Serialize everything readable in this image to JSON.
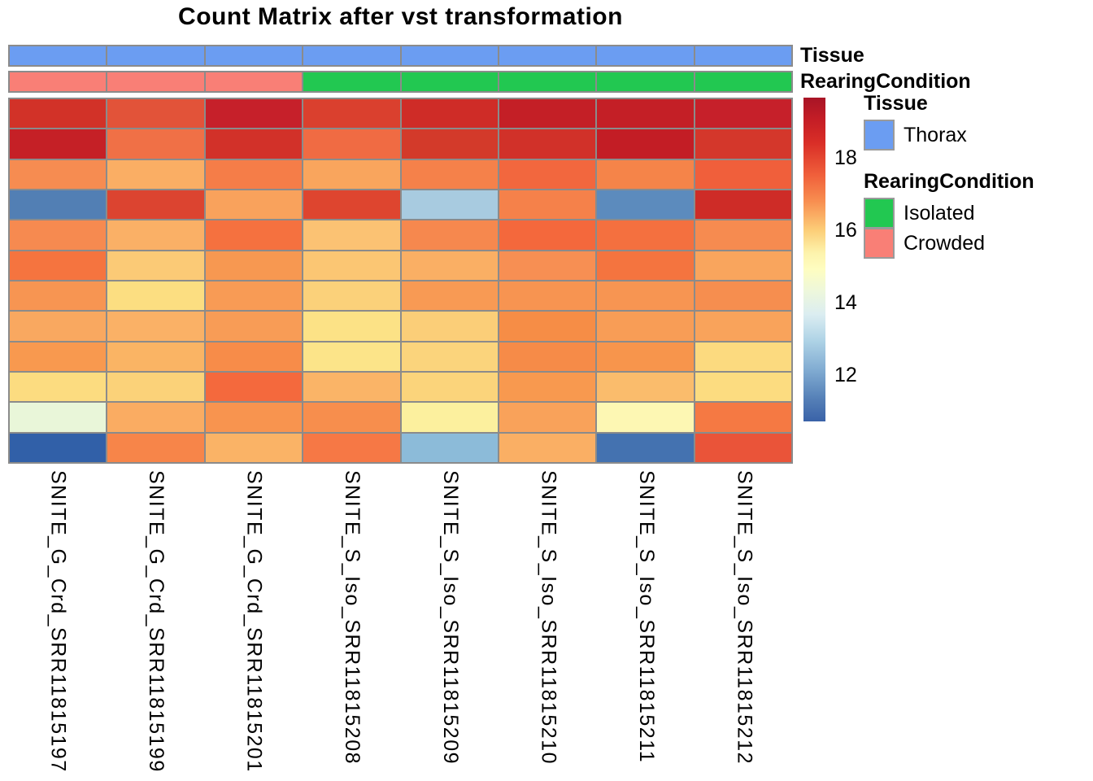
{
  "title": "Count Matrix after vst transformation",
  "annotations": {
    "tissue": {
      "label": "Tissue",
      "values": [
        "Thorax",
        "Thorax",
        "Thorax",
        "Thorax",
        "Thorax",
        "Thorax",
        "Thorax",
        "Thorax"
      ],
      "colors": {
        "Thorax": "#6B9DF2"
      }
    },
    "rearing": {
      "label": "RearingCondition",
      "values": [
        "Crowded",
        "Crowded",
        "Crowded",
        "Isolated",
        "Isolated",
        "Isolated",
        "Isolated",
        "Isolated"
      ],
      "colors": {
        "Isolated": "#22C851",
        "Crowded": "#F97F76"
      }
    }
  },
  "legend": {
    "tissue_header": "Tissue",
    "tissue_items": [
      {
        "label": "Thorax",
        "color": "#6B9DF2"
      }
    ],
    "rearing_header": "RearingCondition",
    "rearing_items": [
      {
        "label": "Isolated",
        "color": "#22C851"
      },
      {
        "label": "Crowded",
        "color": "#F97F76"
      }
    ]
  },
  "colorbar": {
    "ticks": [
      18,
      16,
      14,
      12
    ],
    "value_range": [
      10.73,
      19.65
    ],
    "gradient_stops": [
      [
        "#A81426",
        0
      ],
      [
        "#C51E26",
        7
      ],
      [
        "#D92E27",
        14
      ],
      [
        "#F0603B",
        24
      ],
      [
        "#F88E50",
        32
      ],
      [
        "#FCCE78",
        41
      ],
      [
        "#FDF3AC",
        48
      ],
      [
        "#FEFDC0",
        53
      ],
      [
        "#EDF7DC",
        60
      ],
      [
        "#DBEDF1",
        67
      ],
      [
        "#AFD3E6",
        75
      ],
      [
        "#81ACD2",
        84
      ],
      [
        "#5580B7",
        93
      ],
      [
        "#3A62A8",
        100
      ]
    ]
  },
  "chart_data": {
    "type": "heatmap",
    "title": "Count Matrix after vst transformation",
    "colorscale": {
      "tick_labels": [
        18,
        16,
        14,
        12
      ],
      "range_estimate": [
        10.8,
        19.7
      ],
      "palette": "RdYlBu reversed"
    },
    "legend_position": "right",
    "columns": [
      "SNITE_G_Crd_SRR11815197",
      "SNITE_G_Crd_SRR11815199",
      "SNITE_G_Crd_SRR11815201",
      "SNITE_S_Iso_SRR11815208",
      "SNITE_S_Iso_SRR11815209",
      "SNITE_S_Iso_SRR11815210",
      "SNITE_S_Iso_SRR11815211",
      "SNITE_S_Iso_SRR11815212"
    ],
    "column_annotations": {
      "Tissue": [
        "Thorax",
        "Thorax",
        "Thorax",
        "Thorax",
        "Thorax",
        "Thorax",
        "Thorax",
        "Thorax"
      ],
      "RearingCondition": [
        "Crowded",
        "Crowded",
        "Crowded",
        "Isolated",
        "Isolated",
        "Isolated",
        "Isolated",
        "Isolated"
      ]
    },
    "n_rows": 12,
    "cell_colors": [
      [
        "#D23228",
        "#E25339",
        "#C6202A",
        "#DA402E",
        "#CF2C27",
        "#C41F26",
        "#C41F26",
        "#C6202A"
      ],
      [
        "#C52026",
        "#F07046",
        "#D23129",
        "#F06B43",
        "#D33A2A",
        "#D13129",
        "#C31D25",
        "#D4372B"
      ],
      [
        "#F68C51",
        "#FAAE64",
        "#F57D48",
        "#F9A55D",
        "#F5814A",
        "#F2673E",
        "#F58449",
        "#F05F3B"
      ],
      [
        "#527FB4",
        "#DC4430",
        "#F9A25C",
        "#DE452F",
        "#A8CBE0",
        "#F5814A",
        "#5C8BBD",
        "#CE2C27"
      ],
      [
        "#F68A50",
        "#FAB066",
        "#F5713F",
        "#FBC273",
        "#F6884E",
        "#F4683C",
        "#F4703F",
        "#F68B50"
      ],
      [
        "#F5743F",
        "#FBCA76",
        "#F79851",
        "#FBC673",
        "#FAAF64",
        "#F78F53",
        "#F4743F",
        "#F9A55D"
      ],
      [
        "#F79552",
        "#FCDE81",
        "#F89B55",
        "#FBD17A",
        "#F89A54",
        "#F79451",
        "#F79552",
        "#F68E4F"
      ],
      [
        "#F9A860",
        "#FAB166",
        "#F89C56",
        "#FCE286",
        "#FBCE78",
        "#F68D46",
        "#F89D56",
        "#F9A35B"
      ],
      [
        "#F8994F",
        "#FAB464",
        "#F78C49",
        "#FCE489",
        "#FBD47C",
        "#F68B48",
        "#F7954C",
        "#FCDA7F"
      ],
      [
        "#FCDC80",
        "#FBD279",
        "#F4693D",
        "#FAB467",
        "#FBD47B",
        "#F8994F",
        "#FABC6C",
        "#FCDC80"
      ],
      [
        "#E9F6D9",
        "#FAAC62",
        "#F8944F",
        "#F78E4D",
        "#FCF09E",
        "#F9A25A",
        "#FDF7B3",
        "#F57943"
      ],
      [
        "#3160A8",
        "#F78549",
        "#FAB366",
        "#F67845",
        "#8CBBD9",
        "#FAAF64",
        "#4472B0",
        "#EA5439"
      ]
    ],
    "cell_values_estimated": [
      [
        19.0,
        18.6,
        19.3,
        18.9,
        19.1,
        19.3,
        19.3,
        19.3
      ],
      [
        19.3,
        18.2,
        19.0,
        18.2,
        18.9,
        19.0,
        19.4,
        18.9
      ],
      [
        18.0,
        17.5,
        18.1,
        17.7,
        18.0,
        18.3,
        18.0,
        18.4
      ],
      [
        11.7,
        18.8,
        17.7,
        18.8,
        13.3,
        18.0,
        12.0,
        19.1
      ],
      [
        18.0,
        17.5,
        18.2,
        17.3,
        18.0,
        18.3,
        18.2,
        18.0
      ],
      [
        18.2,
        17.2,
        17.8,
        17.3,
        17.5,
        17.9,
        18.2,
        17.7
      ],
      [
        17.8,
        17.0,
        17.8,
        17.1,
        17.8,
        17.8,
        17.8,
        17.9
      ],
      [
        17.6,
        17.5,
        17.8,
        16.9,
        17.2,
        18.0,
        17.8,
        17.7
      ],
      [
        17.8,
        17.5,
        17.9,
        16.9,
        17.1,
        18.0,
        17.8,
        17.0
      ],
      [
        17.0,
        17.1,
        18.3,
        17.5,
        17.1,
        17.8,
        17.4,
        17.0
      ],
      [
        14.7,
        17.5,
        17.8,
        17.9,
        16.4,
        17.7,
        15.9,
        18.1
      ],
      [
        11.1,
        18.0,
        17.5,
        18.1,
        12.9,
        17.5,
        11.4,
        18.5
      ]
    ]
  }
}
